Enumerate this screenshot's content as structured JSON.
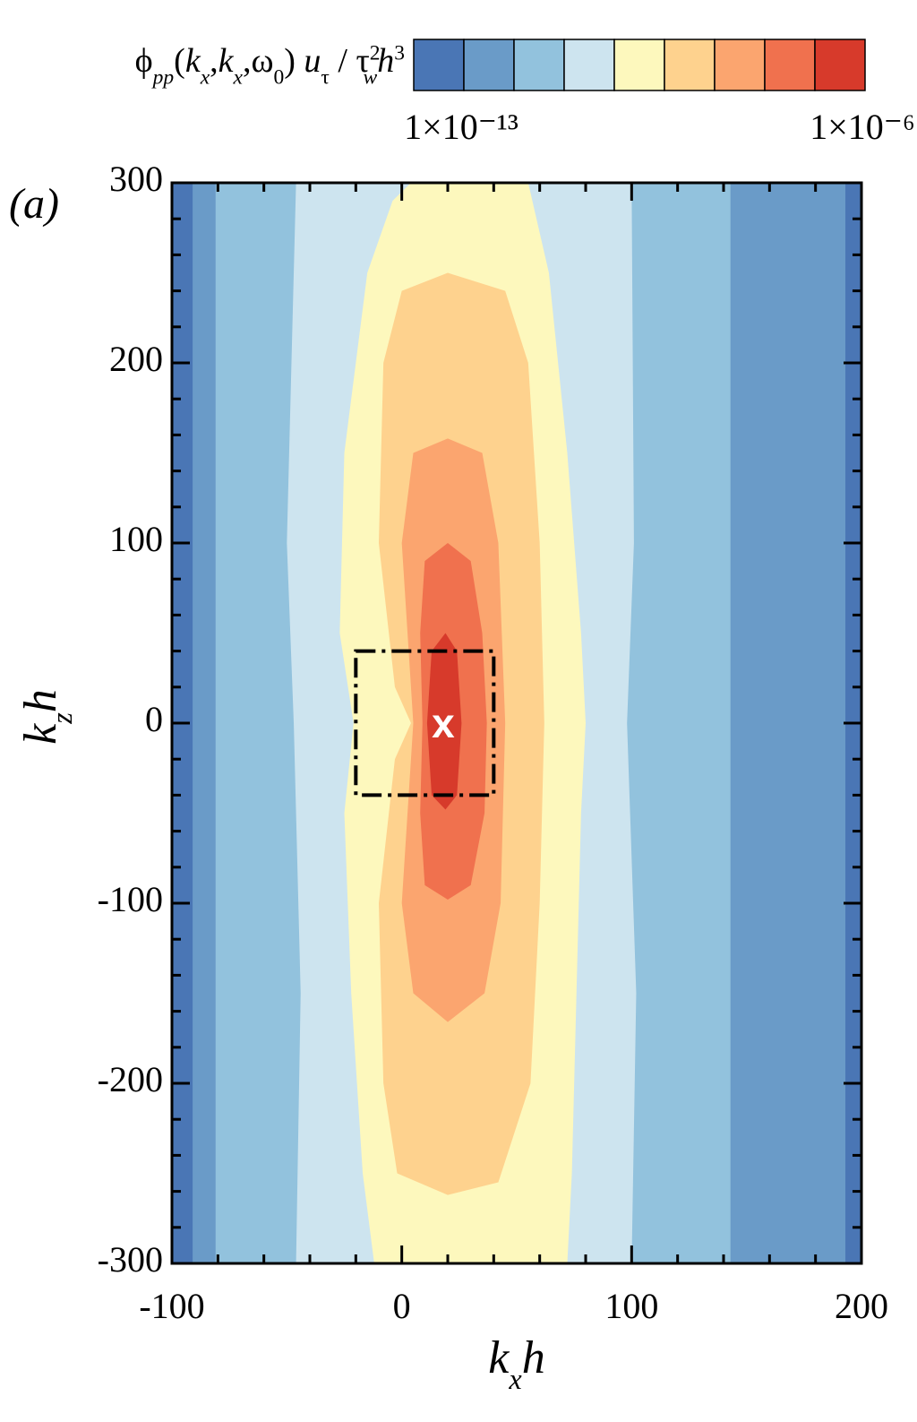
{
  "chart_data": {
    "type": "contour",
    "panel_label": "(a)",
    "x_label": [
      "k",
      "x",
      "h"
    ],
    "y_label": [
      "k",
      "z",
      "h"
    ],
    "xlim": [
      -100,
      200
    ],
    "ylim": [
      -300,
      300
    ],
    "xticks": [
      -100,
      0,
      100,
      200
    ],
    "yticks": [
      -300,
      -200,
      -100,
      0,
      100,
      200,
      300
    ],
    "xminorticks": [
      -80,
      -60,
      -40,
      -20,
      20,
      40,
      60,
      80,
      120,
      140,
      160,
      180
    ],
    "yminorticks": [
      -280,
      -260,
      -240,
      -220,
      -180,
      -160,
      -140,
      -120,
      -80,
      -60,
      -40,
      -20,
      20,
      40,
      60,
      80,
      120,
      140,
      160,
      180,
      220,
      240,
      260,
      280
    ],
    "colorbar": {
      "label": [
        "ϕ",
        "pp",
        "(",
        "k",
        "x",
        ",",
        "k",
        "x",
        ",ω",
        "0",
        ") ",
        "u",
        "τ",
        " / τ",
        "2",
        "w",
        "h",
        "3"
      ],
      "colors": [
        "#4a76b5",
        "#6a9bc8",
        "#92c2dd",
        "#cde4ef",
        "#fdf8bd",
        "#fed28e",
        "#fba56f",
        "#f0714e",
        "#d73a2b"
      ],
      "scale": "log",
      "clim": [
        1e-13,
        1e-06
      ],
      "ticks": [
        {
          "value": 1e-13,
          "label": "1×10⁻¹³"
        },
        {
          "value": 1e-06,
          "label": "1×10⁻⁶"
        }
      ]
    },
    "regions": [
      {
        "level": 1,
        "x": [
          -91,
          -91,
          193,
          193
        ],
        "y": [
          300,
          -300,
          -300,
          300
        ]
      },
      {
        "level": 2,
        "x": [
          -81,
          -81,
          143,
          143
        ],
        "y": [
          300,
          -300,
          -300,
          300
        ]
      },
      {
        "level": 3,
        "x": [
          -46,
          -50,
          -47,
          -44,
          -46,
          100,
          102,
          98,
          101,
          100
        ],
        "y": [
          300,
          100,
          0,
          -150,
          -300,
          -300,
          -150,
          0,
          100,
          300
        ]
      },
      {
        "level": 4,
        "x": [
          4,
          55,
          64,
          72,
          78,
          80,
          78,
          76,
          74,
          72,
          -12,
          -17,
          -22,
          -25,
          -21,
          -27,
          -25,
          -15,
          -4
        ],
        "y": [
          300,
          300,
          250,
          150,
          50,
          0,
          -50,
          -150,
          -250,
          -300,
          -300,
          -250,
          -150,
          -50,
          0,
          50,
          150,
          250,
          290
        ]
      },
      {
        "level": 5,
        "x": [
          20,
          45,
          55,
          60,
          62,
          60,
          56,
          42,
          20,
          -2,
          -8,
          -10,
          -3,
          4,
          -3,
          -10,
          -8,
          0
        ],
        "y": [
          250,
          240,
          200,
          100,
          0,
          -100,
          -200,
          -255,
          -262,
          -250,
          -200,
          -100,
          -20,
          0,
          20,
          100,
          200,
          240
        ]
      },
      {
        "level": 6,
        "x": [
          20,
          35,
          42,
          45,
          43,
          36,
          20,
          5,
          0,
          5,
          0,
          5
        ],
        "y": [
          158,
          150,
          100,
          0,
          -100,
          -150,
          -166,
          -150,
          -100,
          0,
          100,
          150
        ]
      },
      {
        "level": 7,
        "x": [
          20,
          30,
          35,
          37,
          36,
          30,
          20,
          10,
          8,
          9,
          8,
          10
        ],
        "y": [
          100,
          90,
          50,
          0,
          -50,
          -90,
          -98,
          -90,
          -50,
          0,
          50,
          90
        ]
      },
      {
        "level": 8,
        "x": [
          19,
          24,
          26,
          24,
          19,
          13,
          11,
          13
        ],
        "y": [
          50,
          40,
          0,
          -40,
          -48,
          -40,
          0,
          40
        ]
      }
    ],
    "box": {
      "x": [
        -20,
        40
      ],
      "y": [
        -40,
        40
      ]
    },
    "marker": {
      "label": "x",
      "x": 18,
      "y": 0
    }
  }
}
